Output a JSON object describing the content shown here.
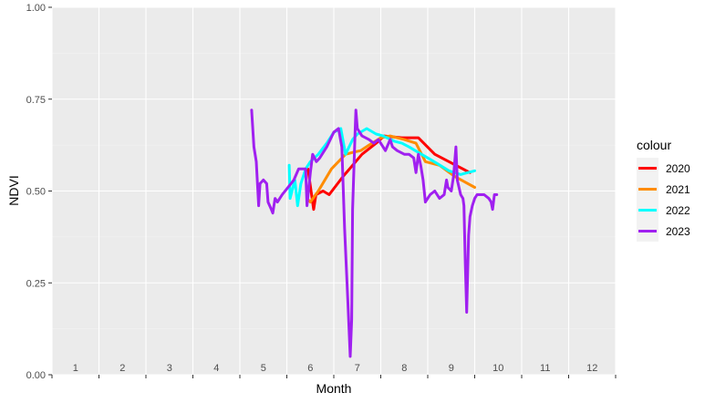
{
  "chart_data": {
    "type": "line",
    "title": "",
    "xlabel": "Month",
    "ylabel": "NDVI",
    "xlim": [
      0.55,
      12.55
    ],
    "ylim": [
      0.0,
      1.0
    ],
    "x_tick_labels": [
      "1",
      "2",
      "3",
      "4",
      "5",
      "6",
      "7",
      "8",
      "9",
      "10",
      "11",
      "12"
    ],
    "y_ticks": [
      0.0,
      0.25,
      0.5,
      0.75,
      1.0
    ],
    "y_tick_labels": [
      "0.00",
      "0.25",
      "0.50",
      "0.75",
      "1.00"
    ],
    "grid": true,
    "legend": {
      "title": "colour",
      "position": "right"
    },
    "series": [
      {
        "name": "2020",
        "color": "#ff0000",
        "points": [
          [
            6.0,
            0.56
          ],
          [
            6.12,
            0.45
          ],
          [
            6.17,
            0.49
          ],
          [
            6.32,
            0.5
          ],
          [
            6.45,
            0.49
          ],
          [
            6.75,
            0.54
          ],
          [
            7.15,
            0.6
          ],
          [
            7.45,
            0.63
          ],
          [
            7.62,
            0.65
          ],
          [
            8.0,
            0.645
          ],
          [
            8.35,
            0.645
          ],
          [
            8.7,
            0.6
          ],
          [
            9.0,
            0.58
          ],
          [
            9.45,
            0.55
          ]
        ]
      },
      {
        "name": "2021",
        "color": "#ff8c00",
        "points": [
          [
            5.98,
            0.48
          ],
          [
            6.05,
            0.47
          ],
          [
            6.22,
            0.5
          ],
          [
            6.5,
            0.56
          ],
          [
            6.8,
            0.6
          ],
          [
            6.95,
            0.605
          ],
          [
            7.12,
            0.61
          ],
          [
            7.3,
            0.625
          ],
          [
            7.55,
            0.645
          ],
          [
            7.75,
            0.65
          ],
          [
            8.05,
            0.64
          ],
          [
            8.3,
            0.63
          ],
          [
            8.5,
            0.58
          ],
          [
            8.8,
            0.57
          ],
          [
            9.12,
            0.54
          ],
          [
            9.55,
            0.51
          ]
        ]
      },
      {
        "name": "2022",
        "color": "#00ffff",
        "points": [
          [
            5.6,
            0.57
          ],
          [
            5.62,
            0.48
          ],
          [
            5.68,
            0.51
          ],
          [
            5.72,
            0.53
          ],
          [
            5.78,
            0.46
          ],
          [
            5.85,
            0.52
          ],
          [
            5.95,
            0.56
          ],
          [
            6.05,
            0.58
          ],
          [
            6.22,
            0.6
          ],
          [
            6.4,
            0.63
          ],
          [
            6.55,
            0.66
          ],
          [
            6.7,
            0.67
          ],
          [
            6.8,
            0.6
          ],
          [
            6.95,
            0.64
          ],
          [
            7.05,
            0.655
          ],
          [
            7.25,
            0.67
          ],
          [
            7.45,
            0.655
          ],
          [
            7.6,
            0.65
          ],
          [
            7.85,
            0.635
          ],
          [
            8.0,
            0.63
          ],
          [
            8.15,
            0.62
          ],
          [
            8.35,
            0.605
          ],
          [
            8.55,
            0.59
          ],
          [
            8.75,
            0.575
          ],
          [
            9.0,
            0.555
          ],
          [
            9.25,
            0.545
          ],
          [
            9.55,
            0.555
          ]
        ]
      },
      {
        "name": "2023",
        "color": "#a020f0",
        "points": [
          [
            4.8,
            0.72
          ],
          [
            4.85,
            0.62
          ],
          [
            4.9,
            0.58
          ],
          [
            4.95,
            0.46
          ],
          [
            4.98,
            0.52
          ],
          [
            5.05,
            0.53
          ],
          [
            5.12,
            0.52
          ],
          [
            5.15,
            0.47
          ],
          [
            5.22,
            0.45
          ],
          [
            5.25,
            0.44
          ],
          [
            5.3,
            0.48
          ],
          [
            5.35,
            0.47
          ],
          [
            5.45,
            0.49
          ],
          [
            5.7,
            0.53
          ],
          [
            5.8,
            0.56
          ],
          [
            5.95,
            0.56
          ],
          [
            5.98,
            0.46
          ],
          [
            6.05,
            0.55
          ],
          [
            6.1,
            0.6
          ],
          [
            6.18,
            0.58
          ],
          [
            6.25,
            0.59
          ],
          [
            6.4,
            0.62
          ],
          [
            6.55,
            0.66
          ],
          [
            6.65,
            0.67
          ],
          [
            6.72,
            0.62
          ],
          [
            6.78,
            0.4
          ],
          [
            6.85,
            0.2
          ],
          [
            6.9,
            0.05
          ],
          [
            6.93,
            0.15
          ],
          [
            6.95,
            0.45
          ],
          [
            7.0,
            0.65
          ],
          [
            7.02,
            0.72
          ],
          [
            7.05,
            0.67
          ],
          [
            7.15,
            0.65
          ],
          [
            7.3,
            0.64
          ],
          [
            7.4,
            0.63
          ],
          [
            7.5,
            0.64
          ],
          [
            7.65,
            0.61
          ],
          [
            7.75,
            0.64
          ],
          [
            7.8,
            0.62
          ],
          [
            7.9,
            0.61
          ],
          [
            8.05,
            0.6
          ],
          [
            8.15,
            0.6
          ],
          [
            8.25,
            0.59
          ],
          [
            8.3,
            0.55
          ],
          [
            8.35,
            0.6
          ],
          [
            8.4,
            0.57
          ],
          [
            8.45,
            0.53
          ],
          [
            8.5,
            0.47
          ],
          [
            8.6,
            0.49
          ],
          [
            8.7,
            0.5
          ],
          [
            8.8,
            0.48
          ],
          [
            8.9,
            0.49
          ],
          [
            8.95,
            0.53
          ],
          [
            8.98,
            0.51
          ],
          [
            9.05,
            0.5
          ],
          [
            9.1,
            0.54
          ],
          [
            9.15,
            0.62
          ],
          [
            9.18,
            0.53
          ],
          [
            9.25,
            0.49
          ],
          [
            9.3,
            0.48
          ],
          [
            9.32,
            0.46
          ],
          [
            9.35,
            0.3
          ],
          [
            9.38,
            0.17
          ],
          [
            9.42,
            0.38
          ],
          [
            9.45,
            0.43
          ],
          [
            9.5,
            0.46
          ],
          [
            9.55,
            0.48
          ],
          [
            9.6,
            0.49
          ],
          [
            9.75,
            0.49
          ],
          [
            9.85,
            0.48
          ],
          [
            9.9,
            0.47
          ],
          [
            9.93,
            0.45
          ],
          [
            9.97,
            0.49
          ],
          [
            10.02,
            0.49
          ]
        ]
      }
    ]
  }
}
